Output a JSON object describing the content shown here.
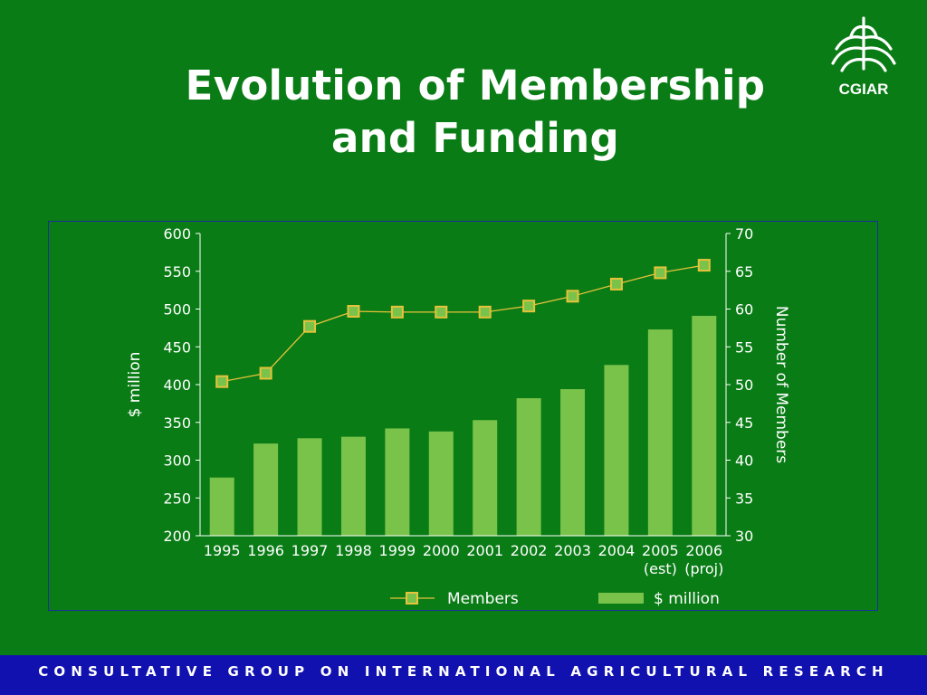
{
  "slide": {
    "title_line1": "Evolution of Membership",
    "title_line2": "and Funding",
    "logo_text": "CGIAR",
    "footer": "CONSULTATIVE GROUP ON INTERNATIONAL AGRICULTURAL RESEARCH"
  },
  "colors": {
    "background": "#0a7c16",
    "bar": "#79c34a",
    "line": "#e8c23a",
    "marker_fill": "#79c34a",
    "footer_bg": "#1111b0",
    "frame_border": "#1a2f9a"
  },
  "chart_data": {
    "type": "bar",
    "categories": [
      "1995",
      "1996",
      "1997",
      "1998",
      "1999",
      "2000",
      "2001",
      "2002",
      "2003",
      "2004",
      "2005\n(est)",
      "2006\n(proj)"
    ],
    "ylabel": "$ million",
    "y2label": "Number of Members",
    "ylim": [
      200,
      600
    ],
    "y2lim": [
      30,
      70
    ],
    "yticks": [
      200,
      250,
      300,
      350,
      400,
      450,
      500,
      550,
      600
    ],
    "y2ticks": [
      30,
      35,
      40,
      45,
      50,
      55,
      60,
      65,
      70
    ],
    "series": [
      {
        "name": "$ million",
        "type": "bar",
        "axis": "left",
        "values": [
          277,
          322,
          329,
          331,
          342,
          338,
          353,
          382,
          394,
          426,
          473,
          491
        ]
      },
      {
        "name": "Members",
        "type": "line",
        "axis": "right",
        "values": [
          50.4,
          51.5,
          57.7,
          59.7,
          59.6,
          59.6,
          59.6,
          60.4,
          61.7,
          63.3,
          64.8,
          65.8
        ]
      }
    ],
    "legend": {
      "position": "bottom-right",
      "order": [
        "Members",
        "$ million"
      ]
    },
    "grid": false
  }
}
